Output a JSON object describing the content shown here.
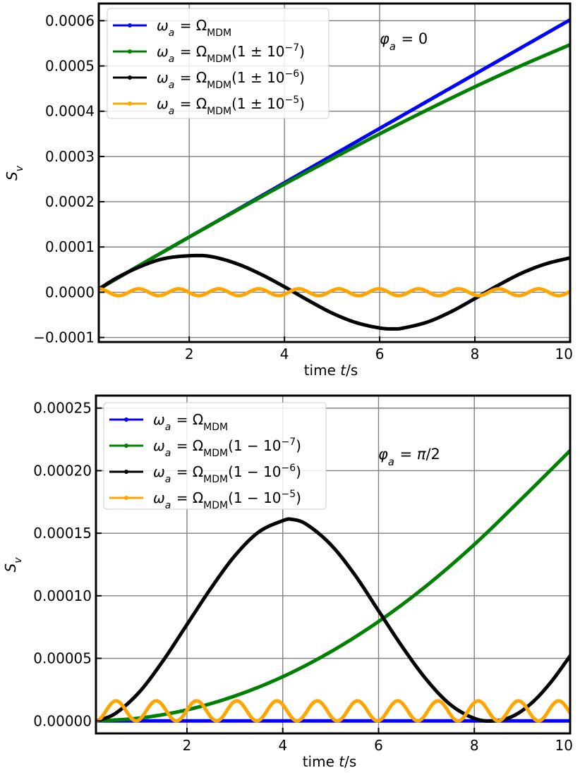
{
  "chart_data": [
    {
      "type": "line",
      "xlabel": "time t/s",
      "ylabel": "S_v",
      "annotation": "φ_a = 0",
      "xlim": [
        0.1,
        10
      ],
      "ylim": [
        -0.00011,
        0.000638
      ],
      "grid": true,
      "legend_position": "top-left",
      "x_ticks": [
        2,
        4,
        6,
        8,
        10
      ],
      "y_ticks": [
        -0.0001,
        0.0,
        0.0001,
        0.0002,
        0.0003,
        0.0004,
        0.0005,
        0.0006
      ],
      "x_tick_labels": [
        "2",
        "4",
        "6",
        "8",
        "10"
      ],
      "y_tick_labels": [
        "−0.0001",
        "0.0000",
        "0.0001",
        "0.0002",
        "0.0003",
        "0.0004",
        "0.0005",
        "0.0006"
      ],
      "series": [
        {
          "name": "ω_a = Ω_MDM",
          "color": "#0000ff",
          "x": [
            0.1,
            1,
            2,
            3,
            4,
            5,
            6,
            7,
            8,
            9,
            10
          ],
          "y": [
            7e-06,
            6.2e-05,
            0.000122,
            0.000182,
            0.000242,
            0.000302,
            0.000362,
            0.000422,
            0.000482,
            0.000542,
            0.000602
          ]
        },
        {
          "name": "ω_a = Ω_MDM(1 ± 10^-7)",
          "color": "#008000",
          "x": [
            0.1,
            1,
            2,
            3,
            4,
            5,
            6,
            7,
            8,
            9,
            10
          ],
          "y": [
            7e-06,
            6.2e-05,
            0.000122,
            0.000181,
            0.000239,
            0.000295,
            0.00035,
            0.000403,
            0.000454,
            0.000502,
            0.000547
          ]
        },
        {
          "name": "ω_a = Ω_MDM(1 ± 10^-6)",
          "color": "#000000",
          "x": [
            0.1,
            0.5,
            1,
            1.5,
            2.1,
            2.5,
            3,
            3.5,
            4,
            4.5,
            5,
            5.5,
            6,
            6.3,
            6.5,
            7,
            7.5,
            8,
            8.5,
            9,
            9.5,
            10
          ],
          "y": [
            7e-06,
            3.3e-05,
            5.8e-05,
            7.5e-05,
            8.1e-05,
            7.8e-05,
            6.3e-05,
            4e-05,
            1.2e-05,
            -1.8e-05,
            -4.6e-05,
            -6.7e-05,
            -7.9e-05,
            -8.1e-05,
            -7.9e-05,
            -6.6e-05,
            -4.3e-05,
            -1.4e-05,
            1.6e-05,
            4.3e-05,
            6.3e-05,
            7.6e-05
          ]
        },
        {
          "name": "ω_a = Ω_MDM(1 ± 10^-5)",
          "color": "#ffa500",
          "oscillation": {
            "period": 0.84,
            "amplitude": 7.5e-06,
            "offset": 0.0
          }
        }
      ]
    },
    {
      "type": "line",
      "xlabel": "time t/s",
      "ylabel": "S_v",
      "annotation": "φ_a = π/2",
      "xlim": [
        0.1,
        10
      ],
      "ylim": [
        -1e-05,
        0.00026
      ],
      "grid": true,
      "legend_position": "top-left",
      "x_ticks": [
        2,
        4,
        6,
        8,
        10
      ],
      "y_ticks": [
        0.0,
        5e-05,
        0.0001,
        0.00015,
        0.0002,
        0.00025
      ],
      "x_tick_labels": [
        "2",
        "4",
        "6",
        "8",
        "10"
      ],
      "y_tick_labels": [
        "0.00000",
        "0.00005",
        "0.00010",
        "0.00015",
        "0.00020",
        "0.00025"
      ],
      "series": [
        {
          "name": "ω_a = Ω_MDM",
          "color": "#0000ff",
          "x": [
            0.1,
            10
          ],
          "y": [
            0.0,
            0.0
          ]
        },
        {
          "name": "ω_a = Ω_MDM(1 − 10^-7)",
          "color": "#008000",
          "x": [
            0.1,
            1,
            2,
            3,
            4,
            5,
            6,
            7,
            8,
            9,
            10
          ],
          "y": [
            0.0,
            2.2e-06,
            8.8e-06,
            1.99e-05,
            3.53e-05,
            5.52e-05,
            7.94e-05,
            0.000108,
            0.000141,
            0.000178,
            0.000216
          ]
        },
        {
          "name": "ω_a = Ω_MDM(1 − 10^-6)",
          "color": "#000000",
          "x": [
            0.1,
            0.5,
            1,
            1.5,
            2,
            2.5,
            3,
            3.5,
            4,
            4.2,
            4.5,
            5,
            5.5,
            6,
            6.5,
            7,
            7.5,
            8,
            8.4,
            8.8,
            9.2,
            9.6,
            10
          ],
          "y": [
            0.0,
            5.8e-06,
            2.28e-05,
            4.8e-05,
            7.7e-05,
            0.000106,
            0.000132,
            0.000151,
            0.00016,
            0.000161,
            0.000157,
            0.000141,
            0.000117,
            8.8e-05,
            5.9e-05,
            3.3e-05,
            1.3e-05,
            2e-06,
            0.0,
            3.7e-06,
            1.44e-05,
            3.1e-05,
            5.2e-05
          ]
        },
        {
          "name": "ω_a = Ω_MDM(1 − 10^-5)",
          "color": "#ffa500",
          "oscillation": {
            "period": 0.84,
            "amplitude": 8e-06,
            "offset": 8e-06
          }
        }
      ]
    }
  ]
}
